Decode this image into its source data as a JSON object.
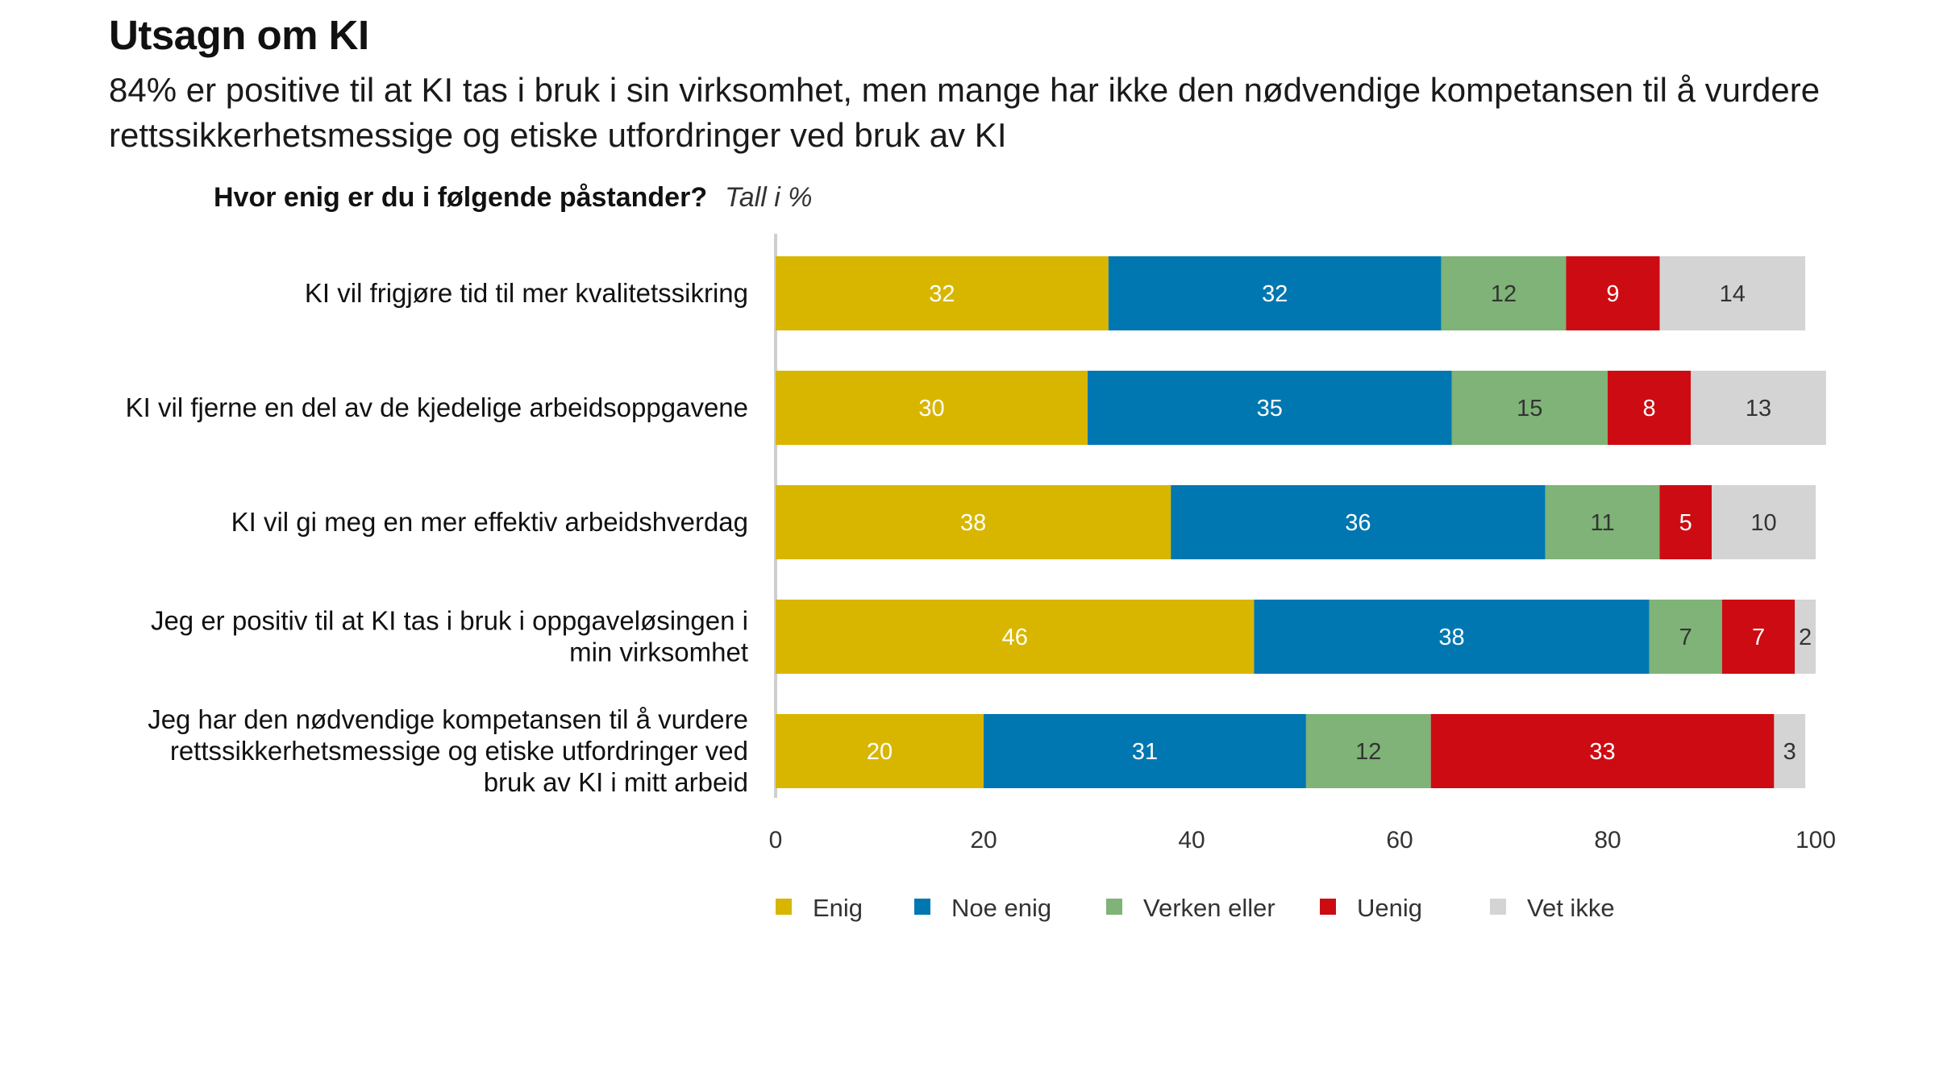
{
  "header": {
    "title": "Utsagn om KI",
    "subtitle": "84% er positive til at KI tas i bruk i sin virksomhet, men mange har ikke den nødvendige kompetansen til å vurdere rettssikkerhetsmessige og etiske utfordringer ved bruk av KI",
    "question": "Hvor enig er du i følgende påstander?",
    "unit_note": "Tall i %"
  },
  "chart_data": {
    "type": "bar",
    "orientation": "horizontal",
    "stacked": true,
    "categories": [
      "KI vil frigjøre tid til mer kvalitetssikring",
      "KI vil fjerne en del av de kjedelige arbeidsoppgavene",
      "KI vil gi meg en mer effektiv arbeidshverdag",
      "Jeg er positiv til at KI tas i bruk i oppgaveløsingen i min virksomhet",
      "Jeg har den nødvendige kompetansen til å vurdere rettssikkerhetsmessige og etiske utfordringer ved bruk av KI i mitt arbeid"
    ],
    "category_lines": [
      [
        "KI vil frigjøre tid til mer kvalitetssikring"
      ],
      [
        "KI vil fjerne en del av de kjedelige arbeidsoppgavene"
      ],
      [
        "KI vil gi meg en mer effektiv arbeidshverdag"
      ],
      [
        "Jeg er positiv til at KI tas i bruk i oppgaveløsingen i",
        "min virksomhet"
      ],
      [
        "Jeg har den nødvendige kompetansen til å vurdere",
        "rettssikkerhetsmessige og etiske utfordringer ved",
        "bruk av KI i mitt arbeid"
      ]
    ],
    "series": [
      {
        "name": "Enig",
        "color": "#d8b600",
        "label_color": "#ffffff",
        "values": [
          32,
          30,
          38,
          46,
          20
        ]
      },
      {
        "name": "Noe enig",
        "color": "#0077b0",
        "label_color": "#ffffff",
        "values": [
          32,
          35,
          36,
          38,
          31
        ]
      },
      {
        "name": "Verken eller",
        "color": "#7fb377",
        "label_color": "#333333",
        "values": [
          12,
          15,
          11,
          7,
          12
        ]
      },
      {
        "name": "Uenig",
        "color": "#cc0c12",
        "label_color": "#ffffff",
        "values": [
          9,
          8,
          5,
          7,
          33
        ]
      },
      {
        "name": "Vet ikke",
        "color": "#d4d4d4",
        "label_color": "#333333",
        "values": [
          14,
          13,
          10,
          2,
          3
        ]
      }
    ],
    "xlim": [
      0,
      100
    ],
    "xticks": [
      0,
      20,
      40,
      60,
      80,
      100
    ],
    "grid": false,
    "legend_position": "bottom"
  }
}
